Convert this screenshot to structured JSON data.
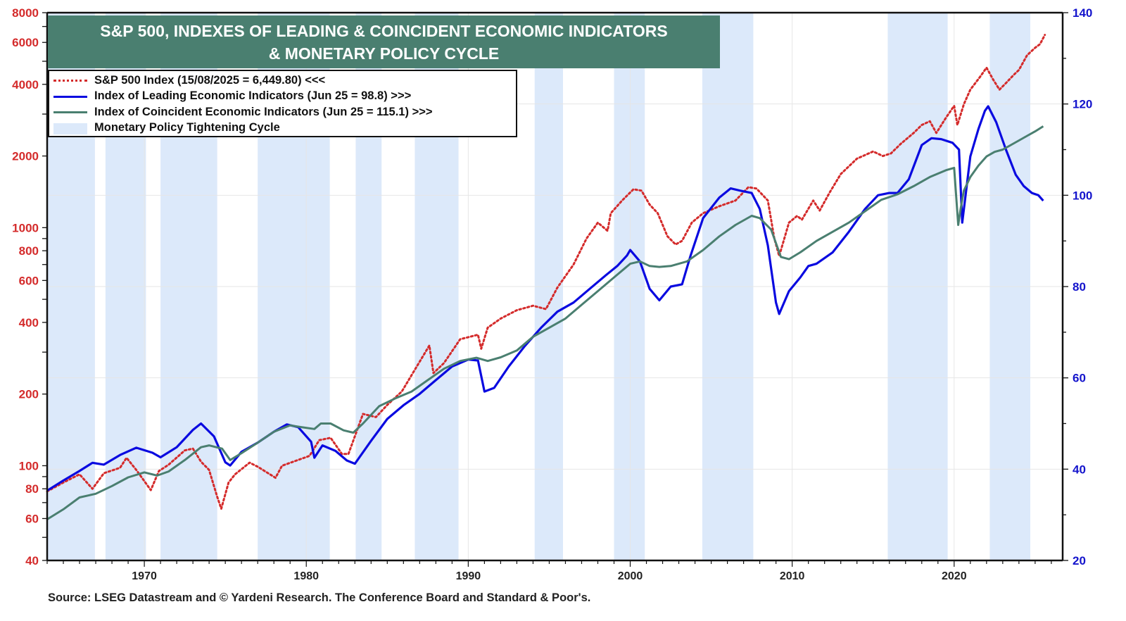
{
  "chart_data": {
    "type": "line",
    "title": "S&P 500, INDEXES OF LEADING & COINCIDENT ECONOMIC INDICATORS & MONETARY POLICY CYCLE",
    "title_lines": [
      "S&P 500, INDEXES OF LEADING & COINCIDENT ECONOMIC INDICATORS",
      "& MONETARY POLICY CYCLE"
    ],
    "source": "Source: LSEG Datastream and © Yardeni Research. The Conference Board and Standard & Poor's.",
    "xlim": [
      1964,
      2026.7
    ],
    "x_ticks": [
      1970,
      1980,
      1990,
      2000,
      2010,
      2020
    ],
    "x_tick_labels": [
      "1970",
      "1980",
      "1990",
      "2000",
      "2010",
      "2020"
    ],
    "y_left": {
      "scale": "log",
      "lim": [
        40,
        8000
      ],
      "ticks": [
        40,
        60,
        80,
        100,
        200,
        400,
        600,
        800,
        1000,
        2000,
        4000,
        6000,
        8000
      ],
      "tick_labels": [
        "40",
        "60",
        "80",
        "100",
        "200",
        "400",
        "600",
        "800",
        "1000",
        "2000",
        "4000",
        "6000",
        "8000"
      ],
      "color": "#d42b2b"
    },
    "y_right": {
      "scale": "linear",
      "lim": [
        20,
        140
      ],
      "ticks": [
        20,
        40,
        60,
        80,
        100,
        120,
        140
      ],
      "tick_labels": [
        "20",
        "40",
        "60",
        "80",
        "100",
        "120",
        "140"
      ],
      "color": "#1414cc"
    },
    "grid": true,
    "legend_placement": "top-left",
    "legend": [
      {
        "label": "S&P 500 Index (15/08/2025 = 6,449.80) <<<",
        "style": "dotted",
        "color": "#d42b2b"
      },
      {
        "label": "Index of Leading Economic Indicators (Jun 25 = 98.8) >>>",
        "style": "solid",
        "color": "#0a0ae0"
      },
      {
        "label": "Index of Coincident Economic Indicators (Jun 25 = 115.1) >>>",
        "style": "solid",
        "color": "#4a7f70"
      },
      {
        "label": "Monetary Policy Tightening Cycle",
        "style": "band",
        "color": "#dce9fa"
      }
    ],
    "bands": [
      {
        "start": 1964.0,
        "end": 1966.95
      },
      {
        "start": 1967.6,
        "end": 1970.1
      },
      {
        "start": 1971.0,
        "end": 1974.5
      },
      {
        "start": 1977.0,
        "end": 1981.45
      },
      {
        "start": 1983.05,
        "end": 1984.65
      },
      {
        "start": 1986.7,
        "end": 1989.4
      },
      {
        "start": 1994.1,
        "end": 1995.85
      },
      {
        "start": 1999.0,
        "end": 2000.9
      },
      {
        "start": 2004.45,
        "end": 2007.6
      },
      {
        "start": 2015.9,
        "end": 2019.6
      },
      {
        "start": 2022.2,
        "end": 2024.7
      }
    ],
    "series": [
      {
        "name": "S&P 500 Index",
        "axis": "left",
        "color": "#d42b2b",
        "style": "dotted",
        "x": [
          1964.0,
          1965.0,
          1966.0,
          1966.8,
          1967.5,
          1968.5,
          1968.9,
          1969.5,
          1970.4,
          1970.9,
          1971.5,
          1972.5,
          1973.0,
          1973.5,
          1974.0,
          1974.5,
          1974.75,
          1975.2,
          1975.6,
          1976.5,
          1977.0,
          1978.1,
          1978.5,
          1979.2,
          1980.2,
          1980.8,
          1981.5,
          1982.2,
          1982.6,
          1983.5,
          1984.3,
          1985.0,
          1985.9,
          1986.5,
          1987.6,
          1987.85,
          1988.5,
          1989.5,
          1990.6,
          1990.8,
          1991.2,
          1992.0,
          1993.0,
          1994.0,
          1994.8,
          1995.5,
          1996.5,
          1997.3,
          1998.0,
          1998.6,
          1998.8,
          1999.5,
          2000.2,
          2000.7,
          2001.2,
          2001.7,
          2002.3,
          2002.8,
          2003.2,
          2003.8,
          2004.5,
          2005.5,
          2006.5,
          2007.3,
          2007.8,
          2008.5,
          2008.9,
          2009.2,
          2009.8,
          2010.3,
          2010.6,
          2011.3,
          2011.7,
          2012.3,
          2013.0,
          2014.0,
          2015.0,
          2015.6,
          2016.1,
          2016.7,
          2017.5,
          2018.0,
          2018.5,
          2018.9,
          2019.5,
          2020.0,
          2020.2,
          2020.6,
          2021.0,
          2021.6,
          2022.0,
          2022.4,
          2022.8,
          2023.2,
          2023.7,
          2024.0,
          2024.5,
          2025.0,
          2025.3,
          2025.6
        ],
        "values": [
          78,
          85,
          92,
          80,
          93,
          98,
          108,
          96,
          79,
          95,
          101,
          116,
          118,
          104,
          96,
          74,
          66,
          85,
          92,
          103,
          99,
          89,
          100,
          104,
          110,
          128,
          131,
          112,
          112,
          165,
          160,
          180,
          205,
          240,
          320,
          245,
          270,
          340,
          355,
          310,
          380,
          415,
          450,
          470,
          455,
          560,
          700,
          900,
          1050,
          970,
          1150,
          1300,
          1450,
          1430,
          1250,
          1150,
          920,
          850,
          880,
          1050,
          1150,
          1230,
          1300,
          1480,
          1460,
          1300,
          900,
          760,
          1050,
          1120,
          1080,
          1300,
          1180,
          1400,
          1680,
          1950,
          2090,
          2000,
          2050,
          2250,
          2500,
          2700,
          2800,
          2500,
          2900,
          3250,
          2700,
          3300,
          3800,
          4300,
          4700,
          4200,
          3800,
          4050,
          4400,
          4600,
          5300,
          5700,
          5900,
          6450
        ]
      },
      {
        "name": "Index of Leading Economic Indicators",
        "axis": "right",
        "color": "#0a0ae0",
        "style": "solid",
        "x": [
          1964.0,
          1965.0,
          1966.0,
          1966.8,
          1967.5,
          1968.5,
          1969.5,
          1970.5,
          1971.0,
          1972.0,
          1973.0,
          1973.5,
          1974.3,
          1975.0,
          1975.3,
          1976.0,
          1977.0,
          1978.0,
          1978.8,
          1979.5,
          1980.3,
          1980.5,
          1981.0,
          1981.8,
          1982.5,
          1983.0,
          1984.0,
          1985.0,
          1986.0,
          1987.0,
          1988.0,
          1989.0,
          1990.0,
          1990.6,
          1991.0,
          1991.6,
          1992.5,
          1993.5,
          1994.5,
          1995.5,
          1996.5,
          1997.5,
          1998.5,
          1999.2,
          1999.8,
          2000.0,
          2000.6,
          2001.2,
          2001.8,
          2002.5,
          2003.2,
          2003.7,
          2004.5,
          2005.5,
          2006.2,
          2006.8,
          2007.5,
          2008.0,
          2008.5,
          2009.0,
          2009.2,
          2009.8,
          2010.5,
          2011.0,
          2011.5,
          2012.5,
          2013.5,
          2014.5,
          2015.3,
          2016.0,
          2016.5,
          2017.2,
          2018.0,
          2018.6,
          2019.2,
          2019.9,
          2020.3,
          2020.5,
          2021.0,
          2021.5,
          2021.9,
          2022.1,
          2022.6,
          2023.2,
          2023.8,
          2024.3,
          2024.8,
          2025.2,
          2025.5
        ],
        "values": [
          35.3,
          37.5,
          39.6,
          41.4,
          41.0,
          43.1,
          44.7,
          43.6,
          42.6,
          44.8,
          48.6,
          50.0,
          47.2,
          41.5,
          40.8,
          43.8,
          45.8,
          48.2,
          49.8,
          49.2,
          46.0,
          42.5,
          45.2,
          44.0,
          41.9,
          41.2,
          46.2,
          51.0,
          54.0,
          56.5,
          59.5,
          62.5,
          64.0,
          63.8,
          57.0,
          57.8,
          62.5,
          67.0,
          71.0,
          74.5,
          76.5,
          79.5,
          82.5,
          84.5,
          86.8,
          88.0,
          85.5,
          79.5,
          77.0,
          80.0,
          80.5,
          86.5,
          95.0,
          99.5,
          101.5,
          101.0,
          100.5,
          97.0,
          89.0,
          76.5,
          74.0,
          79.0,
          82.0,
          84.5,
          85.0,
          87.5,
          92.0,
          97.0,
          100.0,
          100.5,
          100.5,
          103.5,
          111.0,
          112.5,
          112.3,
          111.5,
          110.0,
          94.0,
          108.5,
          114.5,
          118.5,
          119.5,
          116.0,
          110.0,
          104.5,
          102.0,
          100.5,
          100.0,
          98.8
        ]
      },
      {
        "name": "Index of Coincident Economic Indicators",
        "axis": "right",
        "color": "#4a7f70",
        "style": "solid",
        "x": [
          1964.0,
          1965.0,
          1966.0,
          1967.0,
          1968.0,
          1969.0,
          1970.0,
          1970.8,
          1971.5,
          1972.5,
          1973.5,
          1974.0,
          1974.8,
          1975.3,
          1976.0,
          1977.0,
          1978.0,
          1979.0,
          1979.5,
          1980.5,
          1980.9,
          1981.5,
          1982.3,
          1982.9,
          1983.5,
          1984.5,
          1985.5,
          1986.5,
          1987.5,
          1988.5,
          1989.5,
          1990.5,
          1991.2,
          1992.0,
          1993.0,
          1994.0,
          1995.0,
          1996.0,
          1997.0,
          1998.0,
          1999.0,
          2000.0,
          2000.6,
          2001.2,
          2001.8,
          2002.5,
          2003.5,
          2004.5,
          2005.5,
          2006.5,
          2007.5,
          2008.0,
          2008.7,
          2009.3,
          2009.8,
          2010.5,
          2011.5,
          2012.5,
          2013.5,
          2014.5,
          2015.5,
          2016.5,
          2017.5,
          2018.5,
          2019.5,
          2020.0,
          2020.25,
          2020.4,
          2020.6,
          2021.0,
          2021.5,
          2022.0,
          2022.5,
          2023.0,
          2024.0,
          2024.5,
          2025.0,
          2025.5
        ],
        "values": [
          29.0,
          31.2,
          33.8,
          34.6,
          36.3,
          38.2,
          39.3,
          38.6,
          39.5,
          42.0,
          44.8,
          45.2,
          44.5,
          42.0,
          43.5,
          45.8,
          48.2,
          49.6,
          49.3,
          48.8,
          50.0,
          50.0,
          48.5,
          48.0,
          50.0,
          53.8,
          55.5,
          57.0,
          59.5,
          62.0,
          63.7,
          64.4,
          63.7,
          64.5,
          66.0,
          69.0,
          71.0,
          73.0,
          76.0,
          79.0,
          82.0,
          85.0,
          85.5,
          84.5,
          84.3,
          84.5,
          85.5,
          88.0,
          91.0,
          93.5,
          95.5,
          95.0,
          92.5,
          86.5,
          86.0,
          87.5,
          90.0,
          92.0,
          94.0,
          96.5,
          99.0,
          100.2,
          102.0,
          104.0,
          105.5,
          106.0,
          93.5,
          97.0,
          101.0,
          104.0,
          106.5,
          108.5,
          109.5,
          110.0,
          112.0,
          113.0,
          114.0,
          115.1
        ]
      }
    ]
  },
  "labels": {
    "title_line1": "S&P 500, INDEXES OF LEADING & COINCIDENT ECONOMIC INDICATORS",
    "title_line2": "& MONETARY POLICY CYCLE",
    "legend_sp500": "S&P 500 Index (15/08/2025 = 6,449.80) <<<",
    "legend_lei": "Index of Leading Economic Indicators (Jun 25 = 98.8) >>>",
    "legend_cei": "Index of Coincident Economic Indicators (Jun 25 = 115.1) >>>",
    "legend_band": "Monetary Policy Tightening Cycle",
    "source": "Source: LSEG Datastream and © Yardeni Research. The Conference Board and Standard & Poor's."
  }
}
